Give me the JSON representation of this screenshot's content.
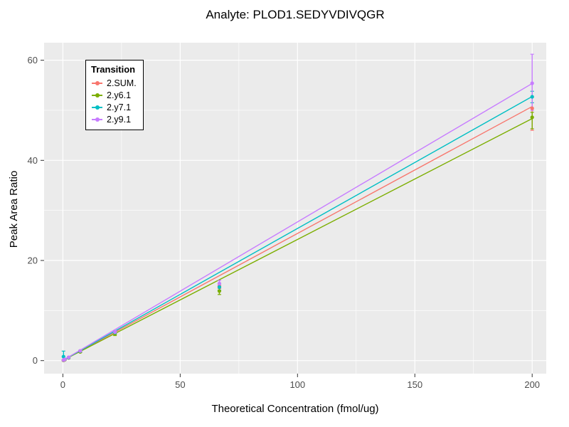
{
  "chart_data": {
    "type": "scatter",
    "title": "Analyte: PLOD1.SEDYVDIVQGR",
    "xlabel": "Theoretical Concentration (fmol/ug)",
    "ylabel": "Peak Area Ratio",
    "xlim": [
      -8,
      206
    ],
    "ylim": [
      -2.6,
      63.5
    ],
    "xticks": [
      0,
      50,
      100,
      150,
      200
    ],
    "yticks": [
      0,
      20,
      40,
      60
    ],
    "x_minor": [
      25,
      75,
      125,
      175
    ],
    "y_minor": [
      10,
      30,
      50
    ],
    "panel_bg": "#EBEBEB",
    "grid_color": "#FFFFFF",
    "tick_label_color": "#4d4d4d",
    "legend": {
      "title": "Transition"
    },
    "series": [
      {
        "name": "2.SUM.",
        "color": "#F8766D",
        "fit": {
          "slope": 0.2535,
          "intercept": 0.05,
          "x0": 0.27,
          "x1": 200
        },
        "points": [
          {
            "x": 0.27,
            "y": 0.07,
            "lo": 0.0,
            "hi": 0.15
          },
          {
            "x": 0.82,
            "y": 0.2,
            "lo": 0.1,
            "hi": 0.3
          },
          {
            "x": 2.47,
            "y": 0.6,
            "lo": 0.45,
            "hi": 0.75
          },
          {
            "x": 7.41,
            "y": 1.85,
            "lo": 1.7,
            "hi": 2.0
          },
          {
            "x": 22.2,
            "y": 5.5,
            "lo": 5.2,
            "hi": 5.8
          },
          {
            "x": 66.7,
            "y": 14.9,
            "lo": 14.4,
            "hi": 15.4
          },
          {
            "x": 200,
            "y": 50.4,
            "lo": 46.0,
            "hi": 52.6
          }
        ]
      },
      {
        "name": "2.y6.1",
        "color": "#7CAE00",
        "fit": {
          "slope": 0.2415,
          "intercept": 0.05,
          "x0": 0.27,
          "x1": 200
        },
        "points": [
          {
            "x": 0.27,
            "y": 0.05,
            "lo": 0.0,
            "hi": 0.1
          },
          {
            "x": 0.82,
            "y": 0.18,
            "lo": 0.1,
            "hi": 0.26
          },
          {
            "x": 2.47,
            "y": 0.55,
            "lo": 0.4,
            "hi": 0.7
          },
          {
            "x": 7.41,
            "y": 1.75,
            "lo": 1.6,
            "hi": 1.9
          },
          {
            "x": 22.2,
            "y": 5.35,
            "lo": 5.0,
            "hi": 5.7
          },
          {
            "x": 66.7,
            "y": 13.9,
            "lo": 13.2,
            "hi": 14.6
          },
          {
            "x": 200,
            "y": 48.6,
            "lo": 46.3,
            "hi": 49.6
          }
        ]
      },
      {
        "name": "2.y7.1",
        "color": "#00BFC4",
        "fit": {
          "slope": 0.2635,
          "intercept": 0.05,
          "x0": 0.27,
          "x1": 200
        },
        "points": [
          {
            "x": 0.27,
            "y": 0.8,
            "lo": 0.0,
            "hi": 1.9
          },
          {
            "x": 0.82,
            "y": 0.25,
            "lo": 0.15,
            "hi": 0.35
          },
          {
            "x": 2.47,
            "y": 0.6,
            "lo": 0.5,
            "hi": 0.7
          },
          {
            "x": 7.41,
            "y": 1.9,
            "lo": 1.75,
            "hi": 2.05
          },
          {
            "x": 22.2,
            "y": 5.6,
            "lo": 5.3,
            "hi": 5.9
          },
          {
            "x": 66.7,
            "y": 14.7,
            "lo": 14.1,
            "hi": 15.3
          },
          {
            "x": 200,
            "y": 52.7,
            "lo": 51.5,
            "hi": 53.8
          }
        ]
      },
      {
        "name": "2.y9.1",
        "color": "#C77CFF",
        "fit": {
          "slope": 0.2765,
          "intercept": 0.05,
          "x0": 0.27,
          "x1": 200
        },
        "points": [
          {
            "x": 0.27,
            "y": 0.1,
            "lo": 0.0,
            "hi": 0.2
          },
          {
            "x": 0.82,
            "y": 0.25,
            "lo": 0.15,
            "hi": 0.35
          },
          {
            "x": 2.47,
            "y": 0.65,
            "lo": 0.5,
            "hi": 0.8
          },
          {
            "x": 7.41,
            "y": 1.95,
            "lo": 1.8,
            "hi": 2.1
          },
          {
            "x": 22.2,
            "y": 5.7,
            "lo": 5.4,
            "hi": 6.0
          },
          {
            "x": 66.7,
            "y": 15.4,
            "lo": 14.8,
            "hi": 16.0
          },
          {
            "x": 200,
            "y": 55.4,
            "lo": 50.0,
            "hi": 61.2
          }
        ]
      }
    ]
  }
}
